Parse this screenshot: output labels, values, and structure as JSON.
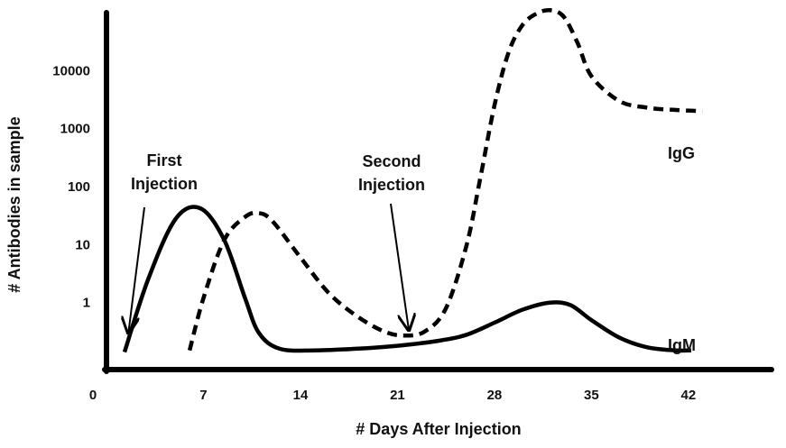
{
  "chart_data": {
    "type": "line",
    "title": "",
    "xlabel": "# Days After Injection",
    "ylabel": "# Antibodies in sample",
    "y_scale": "log",
    "x_ticks": [
      "0",
      "7",
      "14",
      "21",
      "28",
      "35",
      "42"
    ],
    "x_tick_values": [
      0,
      7,
      14,
      21,
      28,
      35,
      42
    ],
    "y_ticks": [
      "1",
      "10",
      "100",
      "1000",
      "10000"
    ],
    "y_tick_values": [
      1,
      10,
      100,
      1000,
      10000
    ],
    "xlim": [
      0,
      48
    ],
    "ylim": [
      0.07,
      100000
    ],
    "grid": false,
    "series": [
      {
        "name": "IgM",
        "style": "solid",
        "color": "#000000",
        "x": [
          1.3,
          3,
          5,
          6.8,
          8.5,
          10,
          11,
          12.5,
          15,
          18,
          21,
          24,
          26,
          28,
          30,
          32,
          33.5,
          35,
          37,
          39,
          41,
          42.2
        ],
        "y": [
          0.14,
          2.5,
          28,
          42,
          12,
          1.2,
          0.3,
          0.16,
          0.15,
          0.16,
          0.18,
          0.22,
          0.28,
          0.45,
          0.75,
          1.0,
          0.9,
          0.5,
          0.25,
          0.17,
          0.15,
          0.15
        ]
      },
      {
        "name": "IgG",
        "style": "dashed",
        "color": "#000000",
        "x": [
          6,
          7,
          8.5,
          10,
          11,
          12,
          14,
          16,
          18,
          20,
          21.5,
          23,
          24.5,
          26,
          27,
          28,
          29,
          30,
          31,
          32,
          33,
          34,
          35,
          37,
          39,
          41,
          43
        ],
        "y": [
          0.15,
          1.2,
          12,
          30,
          35,
          25,
          6,
          1.5,
          0.6,
          0.32,
          0.27,
          0.32,
          0.8,
          10,
          150,
          2500,
          20000,
          60000,
          95000,
          110000,
          85000,
          30000,
          8000,
          3000,
          2300,
          2100,
          2000
        ]
      }
    ],
    "annotations": [
      {
        "text_lines": [
          "First",
          "Injection"
        ],
        "arrow_to": {
          "x": 0.8,
          "y": 0.3
        }
      },
      {
        "text_lines": [
          "Second",
          "Injection"
        ],
        "arrow_to": {
          "x": 22,
          "y": 0.3
        }
      }
    ]
  }
}
